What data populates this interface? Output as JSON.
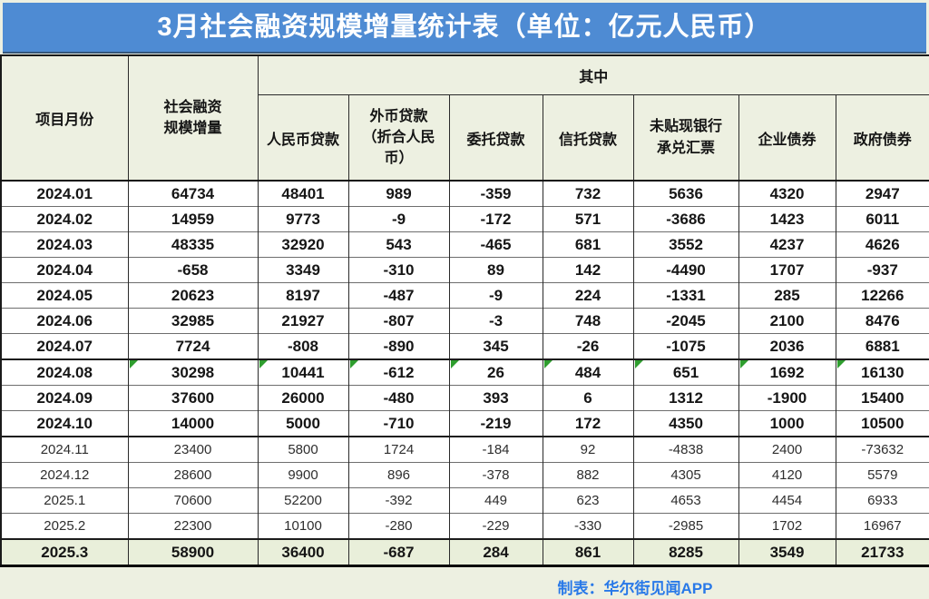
{
  "title": "3月社会融资规模增量统计表（单位：亿元人民币）",
  "chart_data": {
    "type": "table",
    "title": "3月社会融资规模增量统计表",
    "unit": "亿元人民币",
    "columns": {
      "month_label": "项目月份",
      "total_label": "社会融资规模增量",
      "group_label": "其中",
      "sub_columns": [
        "人民币贷款",
        "外币贷款（折合人民币）",
        "委托贷款",
        "信托贷款",
        "未贴现银行承兑汇票",
        "企业债券",
        "政府债券"
      ]
    },
    "rows": [
      {
        "month": "2024.01",
        "values": [
          64734,
          48401,
          989,
          -359,
          732,
          5636,
          4320,
          2947
        ],
        "style": "strong",
        "flags": false,
        "thick_top": false
      },
      {
        "month": "2024.02",
        "values": [
          14959,
          9773,
          -9,
          -172,
          571,
          -3686,
          1423,
          6011
        ],
        "style": "strong",
        "flags": false,
        "thick_top": false
      },
      {
        "month": "2024.03",
        "values": [
          48335,
          32920,
          543,
          -465,
          681,
          3552,
          4237,
          4626
        ],
        "style": "strong",
        "flags": false,
        "thick_top": false
      },
      {
        "month": "2024.04",
        "values": [
          -658,
          3349,
          -310,
          89,
          142,
          -4490,
          1707,
          -937
        ],
        "style": "strong",
        "flags": false,
        "thick_top": false
      },
      {
        "month": "2024.05",
        "values": [
          20623,
          8197,
          -487,
          -9,
          224,
          -1331,
          285,
          12266
        ],
        "style": "strong",
        "flags": false,
        "thick_top": false
      },
      {
        "month": "2024.06",
        "values": [
          32985,
          21927,
          -807,
          -3,
          748,
          -2045,
          2100,
          8476
        ],
        "style": "strong",
        "flags": false,
        "thick_top": false
      },
      {
        "month": "2024.07",
        "values": [
          7724,
          -808,
          -890,
          345,
          -26,
          -1075,
          2036,
          6881
        ],
        "style": "strong",
        "flags": false,
        "thick_top": false
      },
      {
        "month": "2024.08",
        "values": [
          30298,
          10441,
          -612,
          26,
          484,
          651,
          1692,
          16130
        ],
        "style": "strong",
        "flags": true,
        "thick_top": true
      },
      {
        "month": "2024.09",
        "values": [
          37600,
          26000,
          -480,
          393,
          6,
          1312,
          -1900,
          15400
        ],
        "style": "strong",
        "flags": false,
        "thick_top": false
      },
      {
        "month": "2024.10",
        "values": [
          14000,
          5000,
          -710,
          -219,
          172,
          4350,
          1000,
          10500
        ],
        "style": "strong",
        "flags": false,
        "thick_top": false
      },
      {
        "month": "2024.11",
        "values": [
          23400,
          5800,
          1724,
          -184,
          92,
          -4838,
          2400,
          -73632
        ],
        "style": "light",
        "flags": false,
        "thick_top": true
      },
      {
        "month": "2024.12",
        "values": [
          28600,
          9900,
          896,
          -378,
          882,
          4305,
          4120,
          5579
        ],
        "style": "light",
        "flags": false,
        "thick_top": false
      },
      {
        "month": "2025.1",
        "values": [
          70600,
          52200,
          -392,
          449,
          623,
          4653,
          4454,
          6933
        ],
        "style": "light",
        "flags": false,
        "thick_top": false
      },
      {
        "month": "2025.2",
        "values": [
          22300,
          10100,
          -280,
          -229,
          -330,
          -2985,
          1702,
          16967
        ],
        "style": "light",
        "flags": false,
        "thick_top": false
      },
      {
        "month": "2025.3",
        "values": [
          58900,
          36400,
          -687,
          284,
          861,
          8285,
          3549,
          21733
        ],
        "style": "total",
        "flags": false,
        "thick_top": true
      }
    ]
  },
  "footer": {
    "credit": "制表：华尔街见闻APP"
  },
  "colors": {
    "title_bar": "#4e8bd3",
    "title_text": "#ffffff",
    "header_bg": "#edf0e1",
    "total_row_bg": "#e9efda",
    "flag_green": "#2e9e2e",
    "footer_blue": "#2979e8",
    "page_bg": "#edf0e1"
  }
}
